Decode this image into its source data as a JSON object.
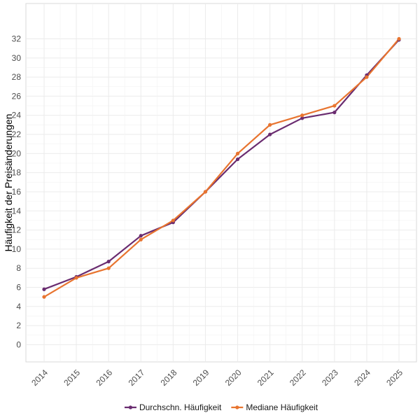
{
  "chart_data": {
    "type": "line",
    "title": "",
    "xlabel": "",
    "ylabel": "Häufigkeit der Preisänderungen",
    "categories": [
      "2014",
      "2015",
      "2016",
      "2017",
      "2018",
      "2019",
      "2020",
      "2021",
      "2022",
      "2023",
      "2024",
      "2025"
    ],
    "yticks": [
      0,
      2,
      4,
      6,
      8,
      10,
      12,
      14,
      16,
      18,
      20,
      22,
      24,
      26,
      28,
      30,
      32
    ],
    "ylim": [
      -1.8,
      35.7
    ],
    "grid": true,
    "legend_position": "bottom",
    "series": [
      {
        "name": "Durchschn. Häufigkeit",
        "color": "#6a2c70",
        "values": [
          5.8,
          7.1,
          8.7,
          11.4,
          12.8,
          16.0,
          19.4,
          22.0,
          23.7,
          24.3,
          28.2,
          31.9
        ]
      },
      {
        "name": "Mediane Häufigkeit",
        "color": "#e8742f",
        "values": [
          5.0,
          7.0,
          8.0,
          11.0,
          13.0,
          16.0,
          20.0,
          23.0,
          24.0,
          25.0,
          28.0,
          32.0
        ]
      }
    ]
  }
}
